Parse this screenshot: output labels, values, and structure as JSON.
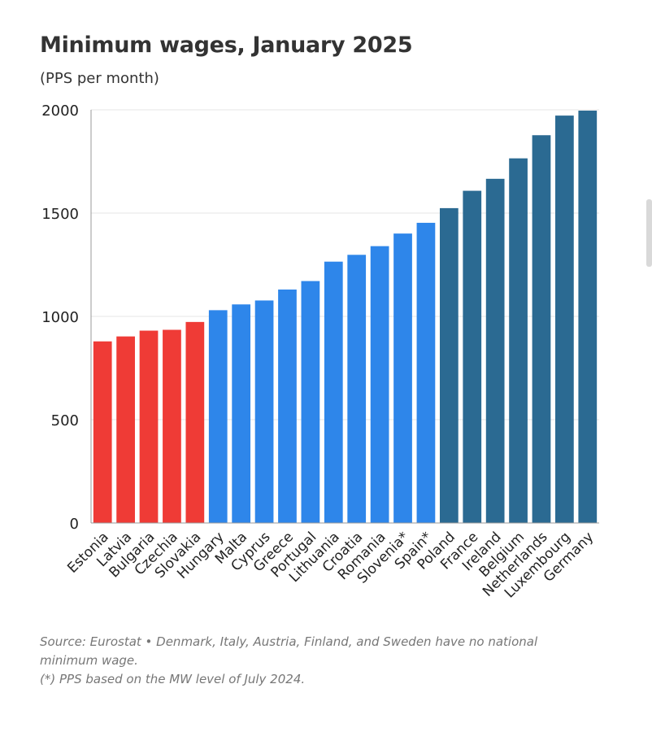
{
  "title": "Minimum wages, January 2025",
  "subtitle": "(PPS per month)",
  "footnotes": {
    "line1": "Source: Eurostat • Denmark, Italy, Austria, Finland, and Sweden have no national",
    "line2": "minimum wage.",
    "line3": "(*) PPS based on the MW level of July 2024."
  },
  "colors": {
    "low": "#ef3b36",
    "mid": "#2e86ea",
    "high": "#2b6a92",
    "grid": "#e6e6e6",
    "axis": "#999999"
  },
  "chart_data": {
    "type": "bar",
    "categories": [
      "Estonia",
      "Latvia",
      "Bulgaria",
      "Czechia",
      "Slovakia",
      "Hungary",
      "Malta",
      "Cyprus",
      "Greece",
      "Portugal",
      "Lithuania",
      "Croatia",
      "Romania",
      "Slovenia*",
      "Spain*",
      "Poland",
      "France",
      "Ireland",
      "Belgium",
      "Netherlands",
      "Luxembourg",
      "Germany"
    ],
    "values": [
      879,
      903,
      931,
      935,
      973,
      1030,
      1058,
      1077,
      1130,
      1171,
      1265,
      1298,
      1340,
      1401,
      1453,
      1524,
      1608,
      1666,
      1765,
      1877,
      1972,
      1996
    ],
    "groups": [
      "low",
      "low",
      "low",
      "low",
      "low",
      "mid",
      "mid",
      "mid",
      "mid",
      "mid",
      "mid",
      "mid",
      "mid",
      "mid",
      "mid",
      "high",
      "high",
      "high",
      "high",
      "high",
      "high",
      "high"
    ],
    "ylim": [
      0,
      2000
    ],
    "yticks": [
      "0",
      "500",
      "1000",
      "1500",
      "2000"
    ],
    "grid": true
  }
}
